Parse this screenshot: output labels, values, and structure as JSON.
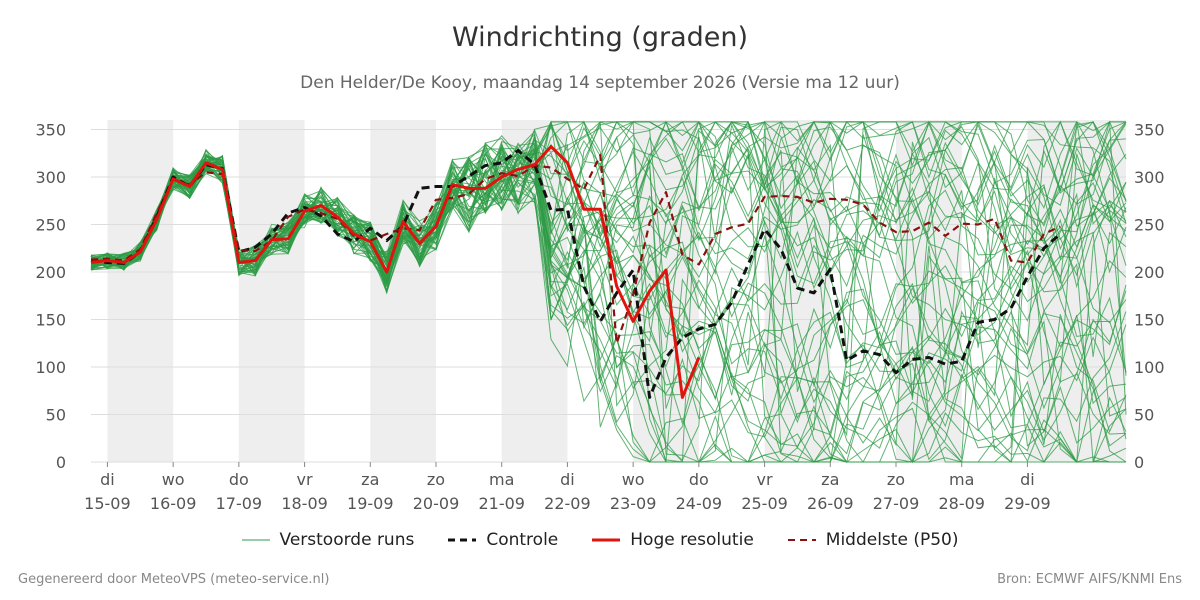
{
  "header": {
    "title": "Windrichting (graden)",
    "subtitle": "Den Helder/De Kooy, maandag 14 september 2026 (Versie ma 12 uur)"
  },
  "footer": {
    "generated": "Gegenereerd door MeteoVPS (meteo-service.nl)",
    "source": "Bron: ECMWF AIFS/KNMI Ens"
  },
  "legend": [
    {
      "key": "members",
      "label": "Verstoorde runs"
    },
    {
      "key": "control",
      "label": "Controle"
    },
    {
      "key": "hires",
      "label": "Hoge resolutie"
    },
    {
      "key": "median",
      "label": "Middelste (P50)"
    }
  ],
  "colors": {
    "members": "#2e9b45",
    "control": "#111111",
    "hires": "#e0140f",
    "median": "#8b1010",
    "shade": "#eeeeee",
    "grid": "#dddddd"
  },
  "chart_data": {
    "type": "line",
    "title": "Windrichting (graden)",
    "ylim": [
      0,
      360
    ],
    "yticks": [
      0,
      50,
      100,
      150,
      200,
      250,
      300,
      350
    ],
    "y_axis_right": true,
    "grid": true,
    "legend_position": "bottom",
    "day_ticks": [
      {
        "weekday": "di",
        "date": "15-09"
      },
      {
        "weekday": "wo",
        "date": "16-09"
      },
      {
        "weekday": "do",
        "date": "17-09"
      },
      {
        "weekday": "vr",
        "date": "18-09"
      },
      {
        "weekday": "za",
        "date": "19-09"
      },
      {
        "weekday": "zo",
        "date": "20-09"
      },
      {
        "weekday": "ma",
        "date": "21-09"
      },
      {
        "weekday": "di",
        "date": "22-09"
      },
      {
        "weekday": "wo",
        "date": "23-09"
      },
      {
        "weekday": "do",
        "date": "24-09"
      },
      {
        "weekday": "vr",
        "date": "25-09"
      },
      {
        "weekday": "za",
        "date": "26-09"
      },
      {
        "weekday": "zo",
        "date": "27-09"
      },
      {
        "weekday": "ma",
        "date": "28-09"
      },
      {
        "weekday": "di",
        "date": "29-09"
      }
    ],
    "x_units": "days since 14-09 00:00",
    "x_range": [
      0.75,
      16.5
    ],
    "weekend_shading": [
      [
        1,
        2
      ],
      [
        3,
        4
      ],
      [
        5,
        6
      ],
      [
        7,
        8
      ],
      [
        9,
        10
      ],
      [
        11,
        12
      ],
      [
        13,
        14
      ],
      [
        15,
        16.5
      ]
    ],
    "series": [
      {
        "name": "Controle",
        "x": [
          0.75,
          1.0,
          1.25,
          1.5,
          1.75,
          2.0,
          2.25,
          2.5,
          2.75,
          3.0,
          3.25,
          3.5,
          3.75,
          4.0,
          4.25,
          4.5,
          4.75,
          5.0,
          5.25,
          5.5,
          5.75,
          6.0,
          6.25,
          6.5,
          6.75,
          7.0,
          7.25,
          7.5,
          7.75,
          8.0,
          8.25,
          8.5,
          8.75,
          9.0,
          9.25,
          9.5,
          9.75,
          10.0,
          10.25,
          10.5,
          10.75,
          11.0,
          11.25,
          11.5,
          11.75,
          12.0,
          12.25,
          12.5,
          12.75,
          13.0,
          13.25,
          13.5,
          13.75,
          14.0,
          14.25,
          14.5,
          14.75,
          15.0,
          15.25,
          15.5
        ],
        "values": [
          212,
          210,
          209,
          221,
          258,
          300,
          290,
          313,
          309,
          221,
          226,
          240,
          262,
          268,
          259,
          240,
          232,
          246,
          233,
          249,
          288,
          290,
          290,
          301,
          312,
          315,
          328,
          313,
          265,
          266,
          185,
          148,
          178,
          202,
          68,
          110,
          131,
          140,
          145,
          168,
          208,
          245,
          224,
          183,
          178,
          203,
          107,
          117,
          113,
          94,
          108,
          110,
          103,
          106,
          147,
          150,
          162,
          195,
          225,
          240
        ],
        "values_note": "tail after 12-09 partially overlapping hires; control dashed black"
      },
      {
        "name": "Hoge resolutie",
        "x": [
          0.75,
          1.0,
          1.25,
          1.5,
          1.75,
          2.0,
          2.25,
          2.5,
          2.75,
          3.0,
          3.25,
          3.5,
          3.75,
          4.0,
          4.25,
          4.5,
          4.75,
          5.0,
          5.25,
          5.5,
          5.75,
          6.0,
          6.25,
          6.5,
          6.75,
          7.0,
          7.25,
          7.5,
          7.75,
          8.0,
          8.25,
          8.5,
          8.75,
          9.0,
          9.25,
          9.5,
          9.75,
          10.0
        ],
        "values": [
          210,
          212,
          210,
          221,
          255,
          298,
          290,
          315,
          308,
          210,
          212,
          234,
          235,
          264,
          270,
          258,
          240,
          232,
          200,
          253,
          230,
          248,
          292,
          288,
          288,
          300,
          308,
          313,
          332,
          315,
          266,
          266,
          185,
          148,
          180,
          202,
          68,
          110
        ]
      },
      {
        "name": "Middelste (P50)",
        "x": [
          0.75,
          1.0,
          1.25,
          1.5,
          1.75,
          2.0,
          2.25,
          2.5,
          2.75,
          3.0,
          3.25,
          3.5,
          3.75,
          4.0,
          4.25,
          4.5,
          4.75,
          5.0,
          5.25,
          5.5,
          5.75,
          6.0,
          6.25,
          6.5,
          6.75,
          7.0,
          7.25,
          7.5,
          7.75,
          8.0,
          8.25,
          8.5,
          8.75,
          9.0,
          9.25,
          9.5,
          9.75,
          10.0,
          10.25,
          10.5,
          10.75,
          11.0,
          11.25,
          11.5,
          11.75,
          12.0,
          12.25,
          12.5,
          12.75,
          13.0,
          13.25,
          13.5,
          13.75,
          14.0,
          14.25,
          14.5,
          14.75,
          15.0,
          15.25,
          15.5
        ],
        "values": [
          213,
          214,
          212,
          224,
          262,
          297,
          292,
          305,
          303,
          223,
          222,
          233,
          258,
          266,
          262,
          256,
          238,
          233,
          240,
          246,
          244,
          276,
          278,
          282,
          298,
          304,
          301,
          312,
          310,
          298,
          287,
          323,
          125,
          176,
          252,
          284,
          218,
          208,
          240,
          247,
          251,
          279,
          280,
          279,
          273,
          277,
          276,
          271,
          252,
          242,
          243,
          252,
          238,
          251,
          250,
          256,
          212,
          210,
          240,
          248
        ]
      }
    ],
    "ensemble_members": {
      "name": "Verstoorde runs",
      "count": 50,
      "spread_description_values": "members closely follow hires until 21-09, then diverge over full 0-360 range"
    }
  }
}
